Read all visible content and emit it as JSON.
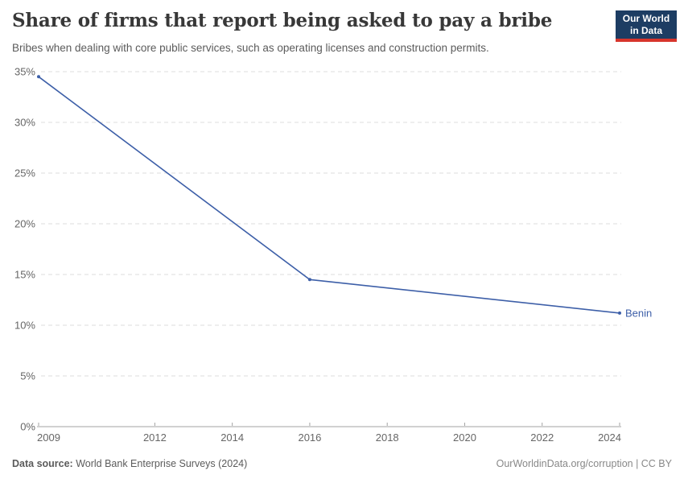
{
  "header": {
    "title": "Share of firms that report being asked to pay a bribe",
    "subtitle": "Bribes when dealing with core public services, such as operating licenses and construction permits."
  },
  "logo": {
    "line1": "Our World",
    "line2": "in Data"
  },
  "chart_data": {
    "type": "line",
    "title": "Share of firms that report being asked to pay a bribe",
    "xlabel": "",
    "ylabel": "",
    "xlim": [
      2009,
      2024
    ],
    "ylim": [
      0,
      35
    ],
    "xticks": [
      2009,
      2012,
      2014,
      2016,
      2018,
      2020,
      2022,
      2024
    ],
    "yticks": [
      0,
      5,
      10,
      15,
      20,
      25,
      30,
      35
    ],
    "ytick_suffix": "%",
    "grid": "horizontal-dashed",
    "legend_position": "end-of-line-label",
    "series": [
      {
        "name": "Benin",
        "color": "#3d5fa8",
        "points": [
          {
            "x": 2009,
            "y": 34.5
          },
          {
            "x": 2016,
            "y": 14.5
          },
          {
            "x": 2024,
            "y": 11.2
          }
        ]
      }
    ]
  },
  "footer": {
    "source_label": "Data source:",
    "source_text": " World Bank Enterprise Surveys (2024)",
    "license": "OurWorldinData.org/corruption | CC BY"
  },
  "colors": {
    "series_blue": "#3d5fa8",
    "logo_background": "#1d3d63",
    "logo_red_bar": "#d7352c",
    "grid_gray": "#dcdcdc",
    "axis_gray": "#a3a3a3",
    "tick_label_gray": "#666666"
  }
}
